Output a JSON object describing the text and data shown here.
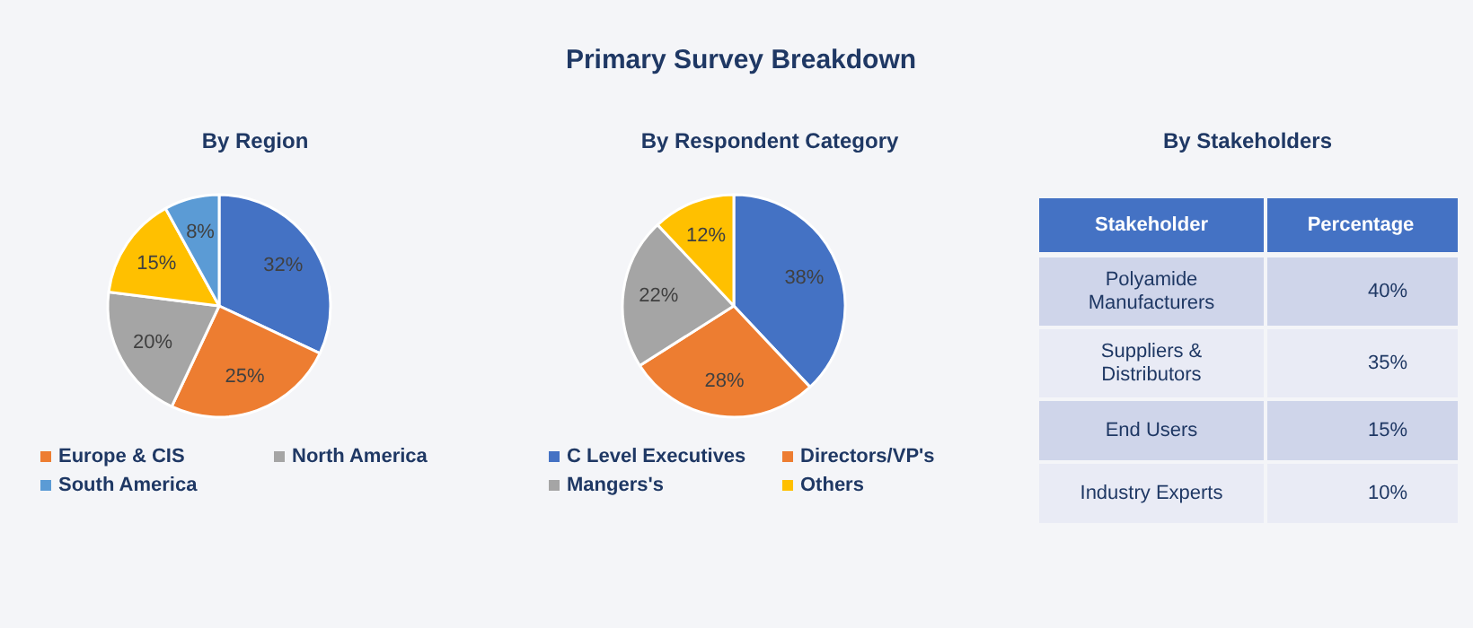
{
  "chart_data": [
    {
      "type": "pie",
      "title": "By Region",
      "annotations": [
        "Primary Survey Breakdown"
      ],
      "categories": [
        null,
        "Europe & CIS",
        "North America",
        null,
        "South America"
      ],
      "values": [
        32,
        25,
        20,
        15,
        8
      ],
      "colors": [
        "#4472c4",
        "#ed7d31",
        "#a5a5a5",
        "#ffc000",
        "#5b9bd5"
      ],
      "value_labels": [
        "32%",
        "25%",
        "20%",
        "15%",
        "8%"
      ],
      "legend": "bottom"
    },
    {
      "type": "pie",
      "title": "By Respondent Category",
      "categories": [
        "C Level Executives",
        "Directors/VP's",
        "Mangers's",
        "Others"
      ],
      "values": [
        38,
        28,
        22,
        12
      ],
      "colors": [
        "#4472c4",
        "#ed7d31",
        "#a5a5a5",
        "#ffc000"
      ],
      "value_labels": [
        "38%",
        "28%",
        "22%",
        "12%"
      ],
      "legend": "bottom"
    },
    {
      "type": "other",
      "title": "By Stakeholders",
      "xlabel": "Stakeholder",
      "ylabel": "Percentage",
      "categories": [
        "Polyamide\nManufacturers",
        "Suppliers &\nDistributors",
        "End Users",
        "Industry Experts"
      ],
      "value_labels": [
        "40%",
        "35%",
        "15%",
        "10%"
      ]
    }
  ]
}
